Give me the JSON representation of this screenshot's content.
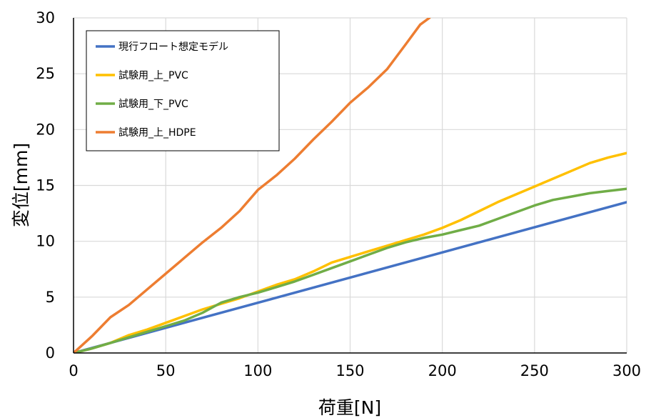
{
  "chart_data": {
    "type": "line",
    "title": "",
    "xlabel": "荷重[N]",
    "ylabel": "変位[mm]",
    "xlim": [
      0,
      300
    ],
    "ylim": [
      0,
      30
    ],
    "xticks": [
      0,
      50,
      100,
      150,
      200,
      250,
      300
    ],
    "yticks": [
      0,
      5,
      10,
      15,
      20,
      25,
      30
    ],
    "grid": true,
    "legend_position": "top-left",
    "series": [
      {
        "name": "現行フロート想定モデル",
        "color": "#4472C4",
        "points": [
          [
            0,
            0
          ],
          [
            300,
            13.5
          ]
        ]
      },
      {
        "name": "試験用_上_PVC",
        "color": "#FFC000",
        "points": [
          [
            0,
            0
          ],
          [
            10,
            0.4
          ],
          [
            20,
            0.9
          ],
          [
            30,
            1.6
          ],
          [
            40,
            2.1
          ],
          [
            50,
            2.7
          ],
          [
            60,
            3.3
          ],
          [
            70,
            3.9
          ],
          [
            80,
            4.4
          ],
          [
            90,
            4.9
          ],
          [
            100,
            5.5
          ],
          [
            110,
            6.1
          ],
          [
            120,
            6.6
          ],
          [
            130,
            7.3
          ],
          [
            140,
            8.1
          ],
          [
            150,
            8.6
          ],
          [
            160,
            9.1
          ],
          [
            170,
            9.6
          ],
          [
            180,
            10.1
          ],
          [
            190,
            10.6
          ],
          [
            200,
            11.2
          ],
          [
            210,
            11.9
          ],
          [
            220,
            12.7
          ],
          [
            230,
            13.5
          ],
          [
            240,
            14.2
          ],
          [
            250,
            14.9
          ],
          [
            260,
            15.6
          ],
          [
            270,
            16.3
          ],
          [
            280,
            17.0
          ],
          [
            290,
            17.5
          ],
          [
            300,
            17.9
          ]
        ]
      },
      {
        "name": "試験用_下_PVC",
        "color": "#70AD47",
        "points": [
          [
            0,
            0
          ],
          [
            10,
            0.4
          ],
          [
            20,
            0.9
          ],
          [
            30,
            1.4
          ],
          [
            40,
            1.9
          ],
          [
            50,
            2.4
          ],
          [
            60,
            2.9
          ],
          [
            70,
            3.6
          ],
          [
            80,
            4.5
          ],
          [
            90,
            5.0
          ],
          [
            100,
            5.4
          ],
          [
            110,
            5.9
          ],
          [
            120,
            6.4
          ],
          [
            130,
            7.0
          ],
          [
            140,
            7.6
          ],
          [
            150,
            8.2
          ],
          [
            160,
            8.8
          ],
          [
            170,
            9.4
          ],
          [
            180,
            9.9
          ],
          [
            190,
            10.3
          ],
          [
            200,
            10.6
          ],
          [
            210,
            11.0
          ],
          [
            220,
            11.4
          ],
          [
            230,
            12.0
          ],
          [
            240,
            12.6
          ],
          [
            250,
            13.2
          ],
          [
            260,
            13.7
          ],
          [
            270,
            14.0
          ],
          [
            280,
            14.3
          ],
          [
            290,
            14.5
          ],
          [
            300,
            14.7
          ]
        ]
      },
      {
        "name": "試験用_上_HDPE",
        "color": "#ED7D31",
        "points": [
          [
            0,
            0
          ],
          [
            10,
            1.5
          ],
          [
            20,
            3.2
          ],
          [
            30,
            4.3
          ],
          [
            40,
            5.7
          ],
          [
            50,
            7.1
          ],
          [
            60,
            8.5
          ],
          [
            70,
            9.9
          ],
          [
            80,
            11.2
          ],
          [
            90,
            12.7
          ],
          [
            100,
            14.6
          ],
          [
            110,
            15.9
          ],
          [
            120,
            17.4
          ],
          [
            130,
            19.1
          ],
          [
            140,
            20.7
          ],
          [
            150,
            22.4
          ],
          [
            160,
            23.8
          ],
          [
            170,
            25.4
          ],
          [
            180,
            27.6
          ],
          [
            188,
            29.4
          ],
          [
            193,
            30.0
          ]
        ]
      }
    ]
  }
}
